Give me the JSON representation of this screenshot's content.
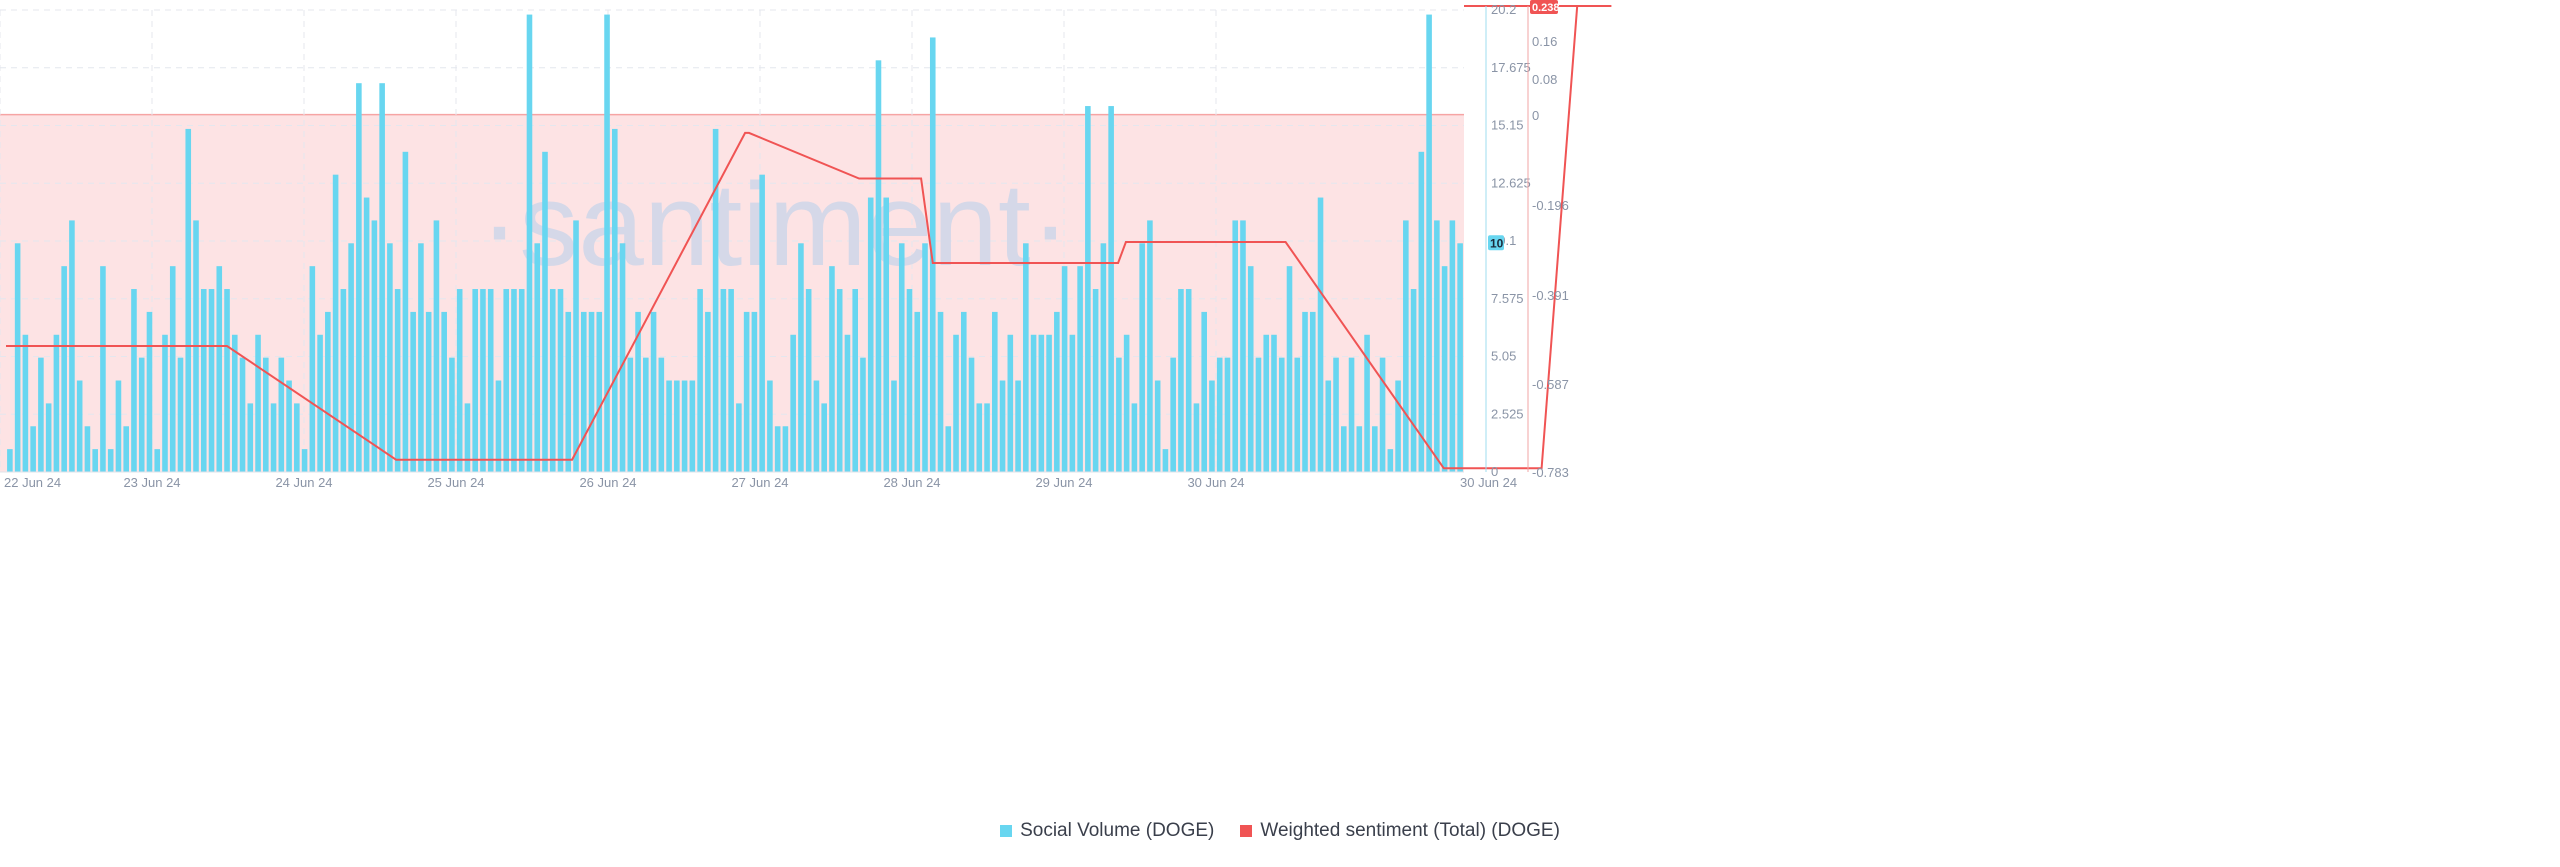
{
  "watermark": "·santiment·",
  "colors": {
    "bar": "#68d6f0",
    "bar_shaded": "#7fbfd6",
    "sentiment_line": "#f05454",
    "negative_fill": "#fde3e4",
    "grid": "#e4e7ee",
    "zero_line": "#f6a4a4"
  },
  "chart_data": {
    "type": "bar",
    "x_range": [
      "22 Jun 24",
      "30 Jun 24"
    ],
    "x_ticks": [
      "22 Jun 24",
      "23 Jun 24",
      "24 Jun 24",
      "25 Jun 24",
      "26 Jun 24",
      "27 Jun 24",
      "28 Jun 24",
      "29 Jun 24",
      "30 Jun 24",
      "30 Jun 24"
    ],
    "y_left": {
      "ticks": [
        "0",
        "2.525",
        "5.05",
        "7.575",
        "10.1",
        "12.625",
        "15.15",
        "17.675",
        "20.2"
      ],
      "range": [
        0,
        20.2
      ],
      "current_value_badge": "10"
    },
    "y_right": {
      "ticks": [
        "-0.783",
        "-0.587",
        "-0.391",
        "-0.196",
        "0",
        "0.08",
        "0.16"
      ],
      "range": [
        -0.783,
        0.238
      ],
      "current_value_badge": "0.238"
    },
    "grid": true,
    "legend_position": "bottom-center",
    "series": [
      {
        "name": "Social Volume (DOGE)",
        "type": "bar",
        "axis": "left",
        "values": [
          1,
          10,
          6,
          2,
          5,
          3,
          6,
          9,
          11,
          4,
          2,
          1,
          9,
          1,
          4,
          2,
          8,
          5,
          7,
          1,
          6,
          9,
          5,
          15,
          11,
          8,
          8,
          9,
          8,
          6,
          5,
          3,
          6,
          5,
          3,
          5,
          4,
          3,
          1,
          9,
          6,
          7,
          13,
          8,
          10,
          17,
          12,
          11,
          17,
          10,
          8,
          14,
          7,
          10,
          7,
          11,
          7,
          5,
          8,
          3,
          8,
          8,
          8,
          4,
          8,
          8,
          8,
          20,
          10,
          14,
          8,
          8,
          7,
          11,
          7,
          7,
          7,
          20,
          15,
          10,
          5,
          7,
          5,
          7,
          5,
          4,
          4,
          4,
          4,
          8,
          7,
          15,
          8,
          8,
          3,
          7,
          7,
          13,
          4,
          2,
          2,
          6,
          10,
          8,
          4,
          3,
          9,
          8,
          6,
          8,
          5,
          12,
          18,
          12,
          4,
          10,
          8,
          7,
          10,
          19,
          7,
          2,
          6,
          7,
          5,
          3,
          3,
          7,
          4,
          6,
          4,
          10,
          6,
          6,
          6,
          7,
          9,
          6,
          9,
          16,
          8,
          10,
          16,
          5,
          6,
          3,
          10,
          11,
          4,
          1,
          5,
          8,
          8,
          3,
          7,
          4,
          5,
          5,
          11,
          11,
          9,
          5,
          6,
          6,
          5,
          9,
          5,
          7,
          7,
          12,
          4,
          5,
          2,
          5,
          2,
          6,
          2,
          5,
          1,
          4,
          11,
          8,
          14,
          20,
          11,
          9,
          11,
          10
        ]
      },
      {
        "name": "Weighted sentiment (Total) (DOGE)",
        "type": "line",
        "axis": "right",
        "step_x": [
          0,
          28.5,
          50.3,
          73,
          95.3,
          95.8,
          110,
          118,
          119.5,
          143.4,
          144.4,
          165,
          185.4,
          198,
          202.6,
          207,
          220.3,
          223,
          230.8
        ],
        "step_y": [
          -0.507,
          -0.507,
          -0.756,
          -0.756,
          -0.04,
          -0.04,
          -0.14,
          -0.14,
          -0.325,
          -0.325,
          -0.279,
          -0.279,
          -0.775,
          -0.775,
          0.238,
          0.238,
          null,
          null,
          null
        ]
      }
    ]
  },
  "legend": [
    {
      "label": "Social Volume (DOGE)",
      "color": "#68d6f0"
    },
    {
      "label": "Weighted sentiment (Total) (DOGE)",
      "color": "#f05454"
    }
  ]
}
